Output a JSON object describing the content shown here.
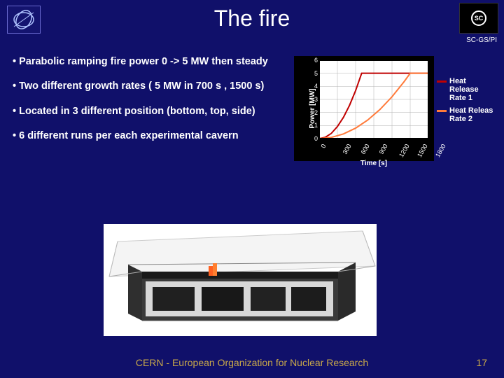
{
  "title": "The fire",
  "sc_label": "SC-GS/PI",
  "sc_text": "SC",
  "bullets": [
    "Parabolic ramping fire power  0 -> 5 MW then steady",
    "Two different growth rates ( 5 MW in 700 s , 1500 s)",
    "Located in 3 different position (bottom, top, side)",
    " 6 different runs per each experimental cavern"
  ],
  "footer": "CERN - European Organization for Nuclear Research",
  "page": "17",
  "chart": {
    "type": "line",
    "plot_bg": "#ffffff",
    "panel_bg": "#000000",
    "grid_color": "#b0b0b0",
    "ylabel": "Power [MW]",
    "xlabel": "Time [s]",
    "xlim": [
      0,
      1800
    ],
    "ylim": [
      0,
      6
    ],
    "yticks": [
      0,
      1,
      2,
      3,
      4,
      5,
      6
    ],
    "xticks": [
      0,
      300,
      600,
      900,
      1200,
      1500,
      1800
    ],
    "series": [
      {
        "name": "Heat Release Rate 1",
        "color": "#c00000",
        "width": 2,
        "points": [
          [
            0,
            0
          ],
          [
            100,
            0.1
          ],
          [
            200,
            0.4
          ],
          [
            300,
            0.92
          ],
          [
            400,
            1.63
          ],
          [
            500,
            2.55
          ],
          [
            600,
            3.67
          ],
          [
            700,
            5.0
          ],
          [
            800,
            5.0
          ],
          [
            1000,
            5.0
          ],
          [
            1200,
            5.0
          ],
          [
            1500,
            5.0
          ],
          [
            1800,
            5.0
          ]
        ]
      },
      {
        "name": "Heat Releas Rate 2",
        "color": "#ff7a3a",
        "width": 2,
        "points": [
          [
            0,
            0
          ],
          [
            200,
            0.09
          ],
          [
            400,
            0.36
          ],
          [
            600,
            0.8
          ],
          [
            800,
            1.42
          ],
          [
            1000,
            2.22
          ],
          [
            1200,
            3.2
          ],
          [
            1400,
            4.36
          ],
          [
            1500,
            5.0
          ],
          [
            1600,
            5.0
          ],
          [
            1800,
            5.0
          ]
        ]
      }
    ],
    "legend_position": "right",
    "tick_fontsize": 9,
    "label_fontsize": 10
  },
  "colors": {
    "page_bg": "#10106a",
    "accent": "#c9a84a"
  }
}
